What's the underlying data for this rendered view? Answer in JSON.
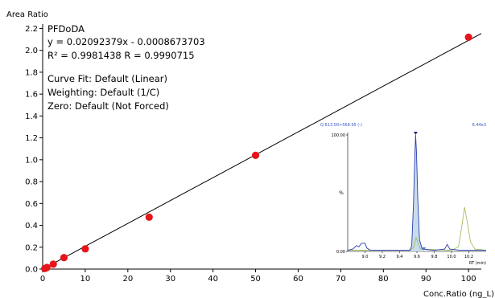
{
  "chart_data": {
    "type": "scatter",
    "ylabel": "Area Ratio",
    "xlabel": "Conc.Ratio (ng_L)",
    "xlim": [
      0,
      103
    ],
    "ylim": [
      0,
      2.24
    ],
    "xticks": [
      0,
      10,
      20,
      30,
      40,
      50,
      60,
      70,
      80,
      90,
      100
    ],
    "xtick_labels": [
      "0",
      "10",
      "20",
      "30",
      "40",
      "50",
      "60",
      "70",
      "80",
      "90",
      "100"
    ],
    "yticks": [
      0,
      0.2,
      0.4,
      0.6,
      0.8,
      1.0,
      1.2,
      1.4,
      1.6,
      1.8,
      2.0,
      2.2
    ],
    "ytick_labels": [
      "0.0",
      "0.2",
      "0.4",
      "0.6",
      "0.8",
      "1.0",
      "1.2",
      "1.4",
      "1.6",
      "1.8",
      "2.0",
      "2.2"
    ],
    "grid": false,
    "points": [
      {
        "x": 0.5,
        "y": 0.005
      },
      {
        "x": 1,
        "y": 0.015
      },
      {
        "x": 2.5,
        "y": 0.045
      },
      {
        "x": 5,
        "y": 0.105
      },
      {
        "x": 10,
        "y": 0.185
      },
      {
        "x": 25,
        "y": 0.475
      },
      {
        "x": 50,
        "y": 1.04
      },
      {
        "x": 100,
        "y": 2.12
      }
    ],
    "point_color": "#e8141b",
    "fit": {
      "slope": 0.02092379,
      "intercept": -0.0008673703,
      "color": "#000000"
    },
    "annotations": [
      "PFDoDA",
      "y = 0.02092379x - 0.0008673703",
      "R² = 0.9981438    R = 0.9990715",
      "Curve Fit: Default (Linear)",
      "Weighting: Default (1/C)",
      "Zero: Default (Not Forced)"
    ],
    "inset": {
      "header_left": "Q 613.00>568.95 (-)",
      "header_right": "6.44e3",
      "yticks": [
        0,
        100
      ],
      "ytick_labels": [
        "0.00",
        "100.00"
      ],
      "ylabel": "%",
      "xlabel": "RT (min)",
      "xlim": [
        8.8,
        10.4
      ],
      "xticks": [
        9.0,
        9.2,
        9.4,
        9.6,
        9.8,
        10.0,
        10.2
      ],
      "xtick_labels": [
        "9.0",
        "9.2",
        "9.4",
        "9.6",
        "9.8",
        "10.0",
        "10.2"
      ],
      "blue_trace": [
        [
          8.8,
          1
        ],
        [
          8.86,
          2
        ],
        [
          8.9,
          5
        ],
        [
          8.93,
          4
        ],
        [
          8.96,
          7
        ],
        [
          9.0,
          7
        ],
        [
          9.02,
          3
        ],
        [
          9.06,
          1
        ],
        [
          9.3,
          1
        ],
        [
          9.45,
          1
        ],
        [
          9.52,
          1
        ],
        [
          9.54,
          5
        ],
        [
          9.56,
          40
        ],
        [
          9.575,
          80
        ],
        [
          9.585,
          100
        ],
        [
          9.595,
          85
        ],
        [
          9.61,
          45
        ],
        [
          9.63,
          10
        ],
        [
          9.66,
          2
        ],
        [
          9.8,
          1
        ],
        [
          9.92,
          2
        ],
        [
          9.95,
          6
        ],
        [
          9.98,
          2
        ],
        [
          10.1,
          1
        ],
        [
          10.4,
          1
        ]
      ],
      "green_trace": [
        [
          8.8,
          1
        ],
        [
          9.5,
          1
        ],
        [
          9.56,
          3
        ],
        [
          9.59,
          12
        ],
        [
          9.61,
          8
        ],
        [
          9.64,
          2
        ],
        [
          10.0,
          1
        ],
        [
          10.08,
          4
        ],
        [
          10.12,
          22
        ],
        [
          10.15,
          38
        ],
        [
          10.18,
          26
        ],
        [
          10.22,
          8
        ],
        [
          10.27,
          2
        ],
        [
          10.4,
          1
        ]
      ],
      "blue_color": "#2a3eb1",
      "green_color": "#9ab84b",
      "fill_color": "#c9dcec",
      "marker_rt": 9.585,
      "marker_end_rt": 9.68
    }
  }
}
